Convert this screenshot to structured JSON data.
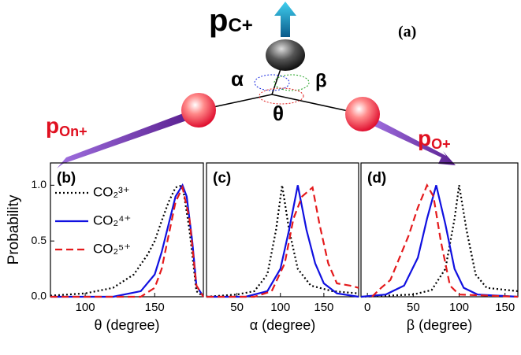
{
  "diagram": {
    "label": "(a)",
    "momenta": [
      {
        "symbol": "p",
        "subscript": "C+"
      },
      {
        "symbol": "p",
        "subscript": "On+"
      },
      {
        "symbol": "p",
        "subscript": "O+"
      }
    ],
    "angles": [
      "α",
      "β",
      "θ"
    ]
  },
  "y_axis_label": "Probability",
  "chart_data": [
    {
      "type": "line",
      "panel_label": "(b)",
      "x_label": "θ (degree)",
      "xlim": [
        75,
        185
      ],
      "xticks": [
        100,
        150
      ],
      "ylim": [
        0,
        1.2
      ],
      "yticks": [
        {
          "value": 0,
          "label": "0.0"
        },
        {
          "value": 0.5,
          "label": "0.5"
        },
        {
          "value": 1,
          "label": "1.0"
        }
      ],
      "legend": "upper-left",
      "series": [
        {
          "name": "CO₂³⁺",
          "color": "#000000",
          "dash": "dotted",
          "x": [
            75,
            100,
            120,
            135,
            145,
            150,
            155,
            160,
            165,
            170,
            175,
            180,
            185
          ],
          "values": [
            0.01,
            0.03,
            0.08,
            0.2,
            0.38,
            0.5,
            0.68,
            0.85,
            0.98,
            1.0,
            0.6,
            0.05,
            0
          ]
        },
        {
          "name": "CO₂⁴⁺",
          "color": "#1010e0",
          "dash": "solid",
          "x": [
            75,
            120,
            140,
            150,
            155,
            160,
            165,
            170,
            173,
            177,
            180,
            185
          ],
          "values": [
            0,
            0,
            0.05,
            0.2,
            0.4,
            0.65,
            0.9,
            1.0,
            0.9,
            0.5,
            0.1,
            0
          ]
        },
        {
          "name": "CO₂⁵⁺",
          "color": "#e41a1c",
          "dash": "dashed",
          "x": [
            75,
            140,
            150,
            155,
            160,
            165,
            170,
            175,
            180,
            185
          ],
          "values": [
            0,
            0,
            0.08,
            0.25,
            0.55,
            0.85,
            0.98,
            0.7,
            0.1,
            0
          ]
        }
      ]
    },
    {
      "type": "line",
      "panel_label": "(c)",
      "x_label": "α (degree)",
      "xlim": [
        15,
        190
      ],
      "xticks": [
        50,
        100,
        150
      ],
      "ylim": [
        0,
        1.2
      ],
      "series": [
        {
          "color": "#000000",
          "dash": "dotted",
          "x": [
            15,
            50,
            70,
            85,
            95,
            102,
            110,
            120,
            135,
            160,
            190
          ],
          "values": [
            0,
            0.02,
            0.05,
            0.2,
            0.6,
            1.0,
            0.6,
            0.25,
            0.1,
            0.05,
            0.03
          ]
        },
        {
          "color": "#1010e0",
          "dash": "solid",
          "x": [
            15,
            60,
            85,
            100,
            110,
            120,
            130,
            140,
            150,
            165,
            190
          ],
          "values": [
            0,
            0,
            0.05,
            0.25,
            0.6,
            1.0,
            0.6,
            0.3,
            0.12,
            0.03,
            0
          ]
        },
        {
          "color": "#e41a1c",
          "dash": "dashed",
          "x": [
            15,
            70,
            90,
            105,
            115,
            125,
            137,
            145,
            155,
            165,
            180,
            190
          ],
          "values": [
            0,
            0,
            0.05,
            0.3,
            0.7,
            0.9,
            0.98,
            0.65,
            0.3,
            0.12,
            0.1,
            0.08
          ]
        }
      ]
    },
    {
      "type": "line",
      "panel_label": "(d)",
      "x_label": "β (degree)",
      "xlim": [
        -7,
        164
      ],
      "xticks": [
        0,
        50,
        100,
        150
      ],
      "ylim": [
        0,
        1.2
      ],
      "series": [
        {
          "color": "#000000",
          "dash": "dotted",
          "x": [
            -7,
            50,
            70,
            85,
            95,
            100,
            108,
            118,
            130,
            164
          ],
          "values": [
            0,
            0.02,
            0.06,
            0.25,
            0.7,
            1.0,
            0.6,
            0.2,
            0.08,
            0.05
          ]
        },
        {
          "color": "#1010e0",
          "dash": "solid",
          "x": [
            -7,
            20,
            40,
            55,
            65,
            75,
            85,
            95,
            105,
            120,
            164
          ],
          "values": [
            0,
            0.02,
            0.1,
            0.35,
            0.7,
            1.0,
            0.65,
            0.25,
            0.08,
            0.02,
            0
          ]
        },
        {
          "color": "#e41a1c",
          "dash": "dashed",
          "x": [
            5,
            15,
            25,
            35,
            45,
            55,
            65,
            72,
            80,
            90,
            100,
            164
          ],
          "values": [
            0,
            0.08,
            0.15,
            0.35,
            0.55,
            0.8,
            1.0,
            0.9,
            0.5,
            0.1,
            0.02,
            0
          ]
        }
      ]
    }
  ]
}
